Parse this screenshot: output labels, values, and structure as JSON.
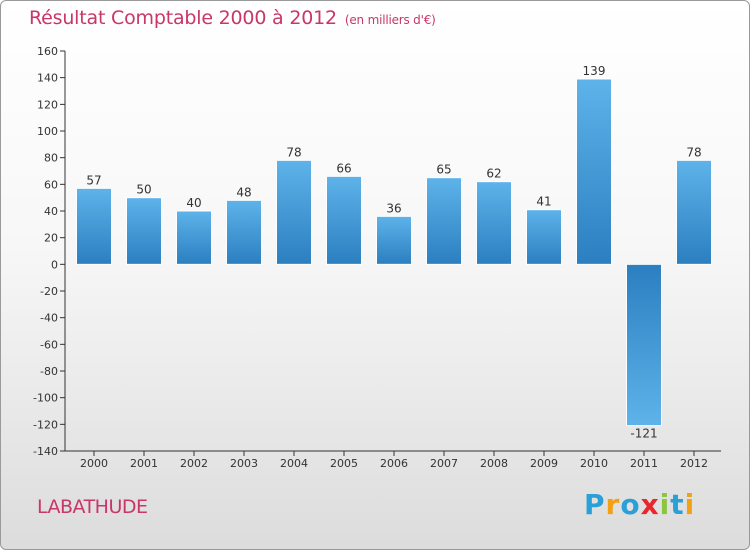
{
  "title": "Résultat Comptable 2000 à 2012",
  "subtitle": "(en milliers d'€)",
  "commune": "LABATHUDE",
  "logo": {
    "letters": [
      "P",
      "r",
      "o",
      "x",
      "i",
      "t",
      "i"
    ],
    "colors": [
      "#2b9fd8",
      "#f2a114",
      "#2b9fd8",
      "#e8262c",
      "#8cc63e",
      "#2b9fd8",
      "#f2a114"
    ]
  },
  "colors": {
    "bar_top": "#5eb3ea",
    "bar_bottom": "#2b7fc0",
    "title": "#c8366a"
  },
  "chart_data": {
    "type": "bar",
    "title": "Résultat Comptable 2000 à 2012",
    "ylabel": "en milliers d'€",
    "categories": [
      "2000",
      "2001",
      "2002",
      "2003",
      "2004",
      "2005",
      "2006",
      "2007",
      "2008",
      "2009",
      "2010",
      "2011",
      "2012"
    ],
    "values": [
      57,
      50,
      40,
      48,
      78,
      66,
      36,
      65,
      62,
      41,
      139,
      -121,
      78
    ],
    "value_labels": [
      "57",
      "50",
      "40",
      "48",
      "78",
      "66",
      "36",
      "65",
      "62",
      "41",
      "139",
      "-121",
      "78"
    ],
    "ylim": [
      -140,
      160
    ],
    "yticks": [
      160,
      140,
      120,
      100,
      80,
      60,
      40,
      20,
      0,
      -20,
      -40,
      -60,
      -80,
      -100,
      -120,
      -140
    ],
    "ytick_labels": [
      "160",
      "140",
      "120",
      "100",
      "80",
      "60",
      "40",
      "20",
      "0",
      "-20",
      "-40",
      "-60",
      "-80",
      "-100",
      "-120",
      "-140"
    ],
    "grid": false
  }
}
